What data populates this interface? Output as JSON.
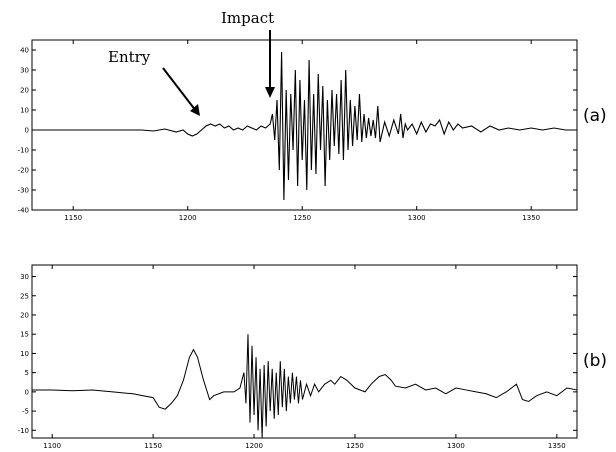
{
  "chart_data": [
    {
      "type": "line",
      "panel_label": "(a)",
      "xlim": [
        1132,
        1370
      ],
      "ylim": [
        -40,
        45
      ],
      "xticks": [
        1150,
        1200,
        1250,
        1300,
        1350
      ],
      "yticks": [
        -40,
        -30,
        -20,
        -10,
        0,
        10,
        20,
        30,
        40
      ],
      "annotations": [
        {
          "text": "Entry",
          "x": 1200,
          "y": 0
        },
        {
          "text": "Impact",
          "x": 1237,
          "y": 5
        }
      ],
      "series": [
        {
          "color": "#000000",
          "x": [
            1132,
            1140,
            1150,
            1160,
            1170,
            1180,
            1185,
            1190,
            1195,
            1198,
            1200,
            1202,
            1204,
            1206,
            1208,
            1210,
            1212,
            1214,
            1216,
            1218,
            1220,
            1222,
            1224,
            1226,
            1228,
            1230,
            1232,
            1234,
            1236,
            1237,
            1238,
            1239,
            1240,
            1241,
            1242,
            1243,
            1244,
            1245,
            1246,
            1247,
            1248,
            1249,
            1250,
            1251,
            1252,
            1253,
            1254,
            1255,
            1256,
            1257,
            1258,
            1259,
            1260,
            1261,
            1262,
            1263,
            1264,
            1265,
            1266,
            1267,
            1268,
            1269,
            1270,
            1271,
            1272,
            1273,
            1274,
            1275,
            1276,
            1277,
            1278,
            1279,
            1280,
            1281,
            1282,
            1283,
            1284,
            1286,
            1288,
            1290,
            1292,
            1293,
            1294,
            1295,
            1296,
            1298,
            1300,
            1302,
            1304,
            1306,
            1308,
            1310,
            1312,
            1314,
            1316,
            1318,
            1320,
            1324,
            1328,
            1332,
            1336,
            1340,
            1345,
            1350,
            1355,
            1360,
            1365,
            1370
          ],
          "y": [
            0,
            0,
            0,
            0,
            0,
            0,
            -0.5,
            0.5,
            -1,
            0,
            -2,
            -3,
            -2,
            0,
            2,
            3,
            2,
            3,
            1,
            2,
            0,
            1,
            0,
            2,
            1,
            0,
            2,
            1,
            3,
            8,
            -5,
            15,
            -20,
            39,
            -35,
            20,
            -25,
            18,
            -10,
            30,
            -28,
            25,
            -15,
            15,
            -30,
            35,
            -20,
            18,
            -22,
            28,
            -10,
            22,
            -28,
            15,
            -15,
            20,
            -8,
            18,
            -12,
            25,
            -15,
            30,
            -10,
            15,
            -8,
            12,
            -5,
            18,
            -6,
            8,
            -4,
            6,
            -3,
            5,
            -4,
            12,
            -6,
            4,
            -3,
            5,
            -2,
            8,
            -4,
            3,
            0,
            3,
            -2,
            4,
            -1,
            3,
            2,
            5,
            -2,
            4,
            0,
            3,
            1,
            2,
            -1,
            2,
            0,
            1,
            0,
            1,
            0,
            1,
            0,
            0
          ]
        }
      ]
    },
    {
      "type": "line",
      "panel_label": "(b)",
      "xlim": [
        1090,
        1360
      ],
      "ylim": [
        -12,
        33
      ],
      "xticks": [
        1100,
        1150,
        1200,
        1250,
        1300,
        1350
      ],
      "yticks": [
        -10,
        -5,
        0,
        5,
        10,
        15,
        20,
        25,
        30
      ],
      "series": [
        {
          "color": "#000000",
          "x": [
            1090,
            1100,
            1110,
            1120,
            1130,
            1140,
            1145,
            1150,
            1153,
            1156,
            1159,
            1162,
            1165,
            1168,
            1170,
            1172,
            1175,
            1178,
            1180,
            1185,
            1190,
            1193,
            1195,
            1196,
            1197,
            1198,
            1199,
            1200,
            1201,
            1202,
            1203,
            1204,
            1205,
            1206,
            1207,
            1208,
            1209,
            1210,
            1211,
            1212,
            1213,
            1214,
            1215,
            1216,
            1217,
            1218,
            1219,
            1220,
            1221,
            1222,
            1223,
            1224,
            1226,
            1228,
            1230,
            1232,
            1235,
            1238,
            1240,
            1243,
            1246,
            1250,
            1255,
            1258,
            1260,
            1262,
            1265,
            1268,
            1270,
            1275,
            1280,
            1285,
            1290,
            1295,
            1300,
            1305,
            1310,
            1315,
            1320,
            1325,
            1330,
            1333,
            1336,
            1340,
            1345,
            1350,
            1355,
            1360
          ],
          "y": [
            0.5,
            0.5,
            0.3,
            0.5,
            0,
            -0.5,
            -1,
            -1.5,
            -4,
            -4.5,
            -3,
            -1,
            3,
            9,
            11,
            9,
            3,
            -2,
            -1,
            0,
            0,
            1,
            5,
            -3,
            15,
            -8,
            12,
            -6,
            9,
            -10,
            6,
            -12,
            7,
            -9,
            8,
            -5,
            6,
            -7,
            5,
            -6,
            8,
            -4,
            6,
            -5,
            4,
            -3,
            5,
            -2,
            4,
            -3,
            3,
            -2,
            2,
            -1,
            2,
            0,
            2,
            3,
            2,
            4,
            3,
            1,
            0,
            2,
            3,
            4,
            4.5,
            3,
            1.5,
            1,
            2,
            0.5,
            1,
            -0.5,
            1,
            0.5,
            0,
            -0.5,
            -1.5,
            0,
            2,
            -2,
            -2.5,
            -1,
            0,
            -1,
            1,
            0.5
          ]
        }
      ]
    }
  ]
}
